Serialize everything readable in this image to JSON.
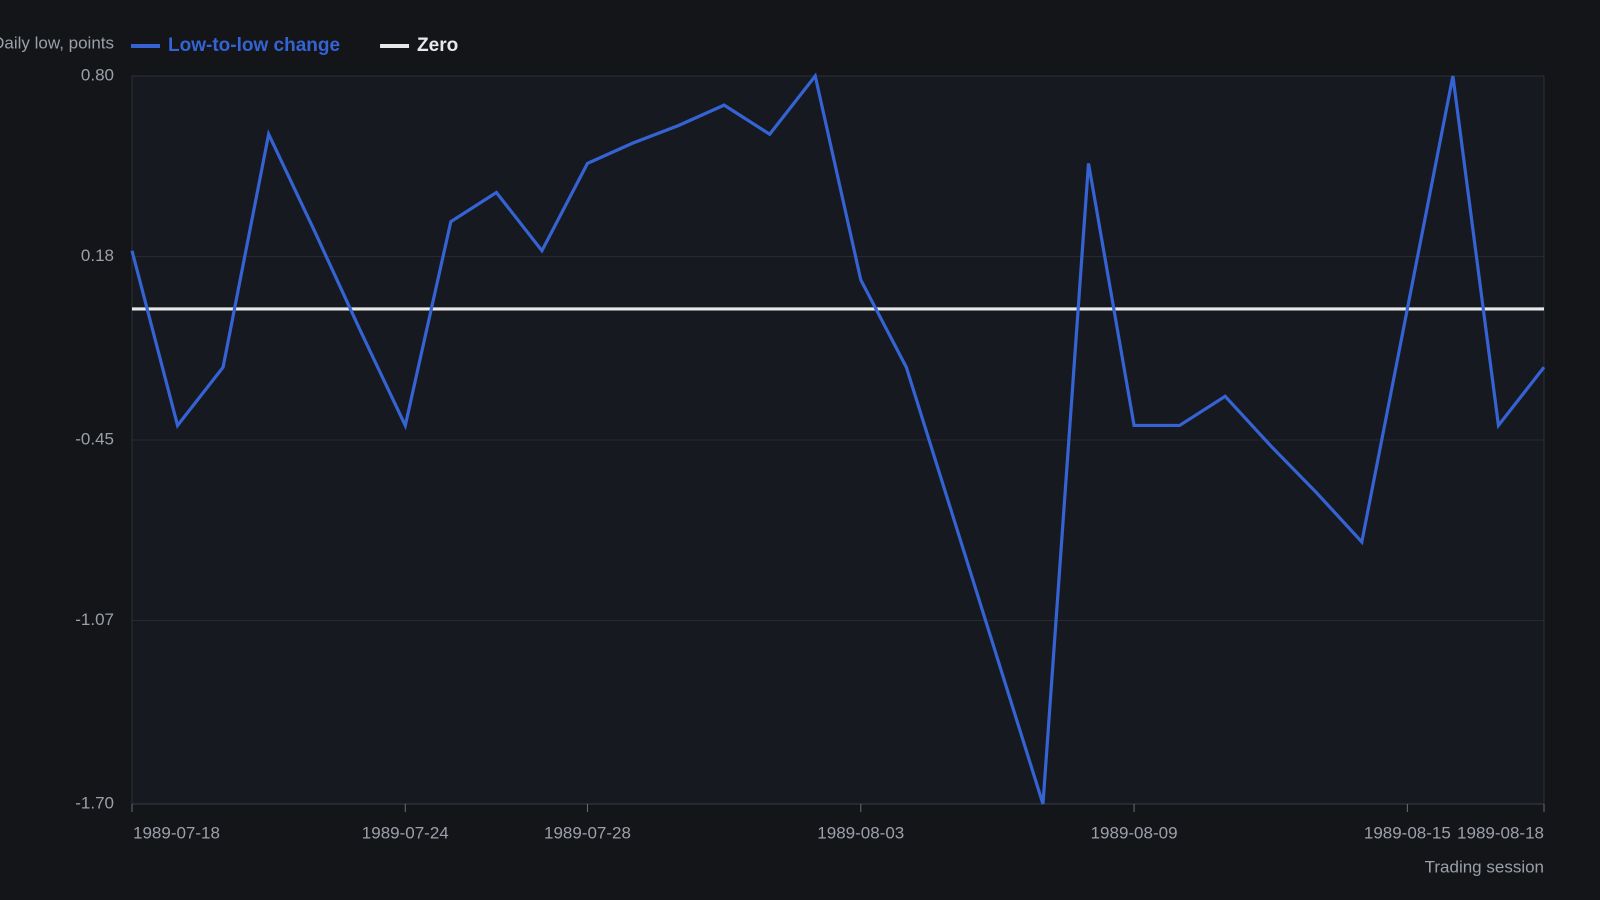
{
  "chart_data": {
    "type": "line",
    "y_label": "Daily low, points",
    "x_label": "Trading session",
    "x": [
      "1989-07-18",
      "1989-07-19",
      "1989-07-20",
      "1989-07-21",
      "1989-07-22",
      "1989-07-23",
      "1989-07-24",
      "1989-07-25",
      "1989-07-26",
      "1989-07-27",
      "1989-07-28",
      "1989-07-29",
      "1989-07-30",
      "1989-07-31",
      "1989-08-01",
      "1989-08-02",
      "1989-08-03",
      "1989-08-04",
      "1989-08-05",
      "1989-08-06",
      "1989-08-07",
      "1989-08-08",
      "1989-08-09",
      "1989-08-10",
      "1989-08-11",
      "1989-08-12",
      "1989-08-13",
      "1989-08-14",
      "1989-08-15",
      "1989-08-16",
      "1989-08-17",
      "1989-08-18"
    ],
    "series": [
      {
        "name": "Low-to-low change",
        "color": "#3563d4",
        "values": [
          0.2,
          -0.4,
          -0.2,
          0.6,
          0.27,
          -0.07,
          -0.4,
          0.3,
          0.4,
          0.2,
          0.5,
          0.57,
          0.63,
          0.7,
          0.6,
          0.8,
          0.1,
          -0.2,
          -0.7,
          -1.2,
          -1.7,
          0.5,
          -0.4,
          -0.4,
          -0.3,
          -0.47,
          -0.63,
          -0.8,
          0.0,
          0.8,
          -0.4,
          -0.2
        ]
      },
      {
        "name": "Zero",
        "color": "#e8e8e8",
        "values": [
          0,
          0,
          0,
          0,
          0,
          0,
          0,
          0,
          0,
          0,
          0,
          0,
          0,
          0,
          0,
          0,
          0,
          0,
          0,
          0,
          0,
          0,
          0,
          0,
          0,
          0,
          0,
          0,
          0,
          0,
          0,
          0
        ]
      }
    ],
    "xlim": [
      "1989-07-18",
      "1989-08-18"
    ],
    "xticks": [
      "1989-07-18",
      "1989-07-24",
      "1989-07-28",
      "1989-08-03",
      "1989-08-09",
      "1989-08-15",
      "1989-08-18"
    ],
    "ylim": [
      -1.7,
      0.8
    ],
    "yticks": [
      {
        "value": 0.8,
        "label": "0.80"
      },
      0.18,
      -0.45,
      -1.07,
      {
        "value": -1.7,
        "label": "-1.70"
      }
    ],
    "grid": true
  }
}
